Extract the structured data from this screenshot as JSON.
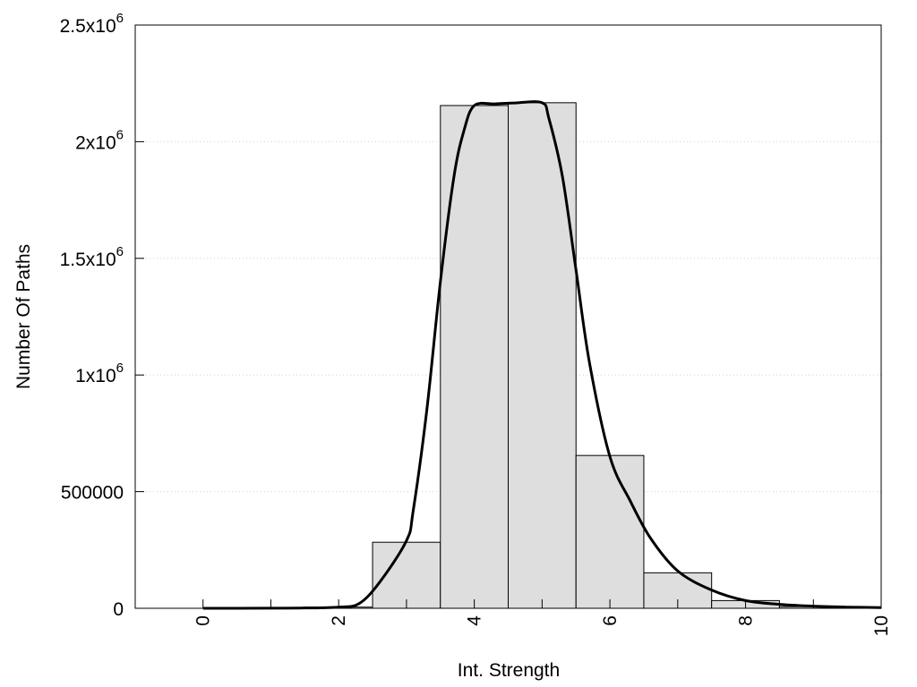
{
  "chart_data": {
    "type": "bar",
    "title": "",
    "xlabel": "Int. Strength",
    "ylabel": "Number Of Paths",
    "xlim": [
      -1,
      10
    ],
    "ylim": [
      0,
      2500000
    ],
    "grid": "y-dotted",
    "legend": "none",
    "x_ticks": [
      {
        "value": 0,
        "label": "0"
      },
      {
        "value": 2,
        "label": "2"
      },
      {
        "value": 4,
        "label": "4"
      },
      {
        "value": 6,
        "label": "6"
      },
      {
        "value": 8,
        "label": "8"
      },
      {
        "value": 10,
        "label": "10"
      }
    ],
    "y_ticks": [
      {
        "value": 0,
        "mantissa": "0",
        "exp": ""
      },
      {
        "value": 500000,
        "mantissa": "500000",
        "exp": ""
      },
      {
        "value": 1000000,
        "mantissa": "1x10",
        "exp": "6"
      },
      {
        "value": 1500000,
        "mantissa": "1.5x10",
        "exp": "6"
      },
      {
        "value": 2000000,
        "mantissa": "2x10",
        "exp": "6"
      },
      {
        "value": 2500000,
        "mantissa": "2.5x10",
        "exp": "6"
      }
    ],
    "bars": {
      "x": [
        0,
        1,
        2,
        3,
        4,
        5,
        6,
        7,
        8,
        9
      ],
      "values": [
        0,
        500,
        5000,
        283000,
        2155000,
        2167000,
        655000,
        152000,
        33000,
        7000
      ],
      "width": 1,
      "fill": "#dedede",
      "stroke": "#000000"
    },
    "curve": {
      "x": [
        0,
        1,
        1.5,
        2,
        2.3,
        2.6,
        3,
        3.1,
        3.3,
        3.5,
        3.7,
        3.85,
        4,
        4.3,
        4.6,
        5,
        5.1,
        5.3,
        5.5,
        5.7,
        6,
        6.3,
        6.6,
        7,
        7.5,
        8,
        8.5,
        9,
        9.5,
        10
      ],
      "y": [
        0,
        500,
        1200,
        5000,
        20000,
        110000,
        290000,
        420000,
        850000,
        1400000,
        1850000,
        2050000,
        2155000,
        2162000,
        2166000,
        2167000,
        2100000,
        1850000,
        1450000,
        1050000,
        650000,
        460000,
        300000,
        160000,
        78000,
        33000,
        17000,
        9000,
        5000,
        3000
      ],
      "color": "#000000"
    }
  }
}
